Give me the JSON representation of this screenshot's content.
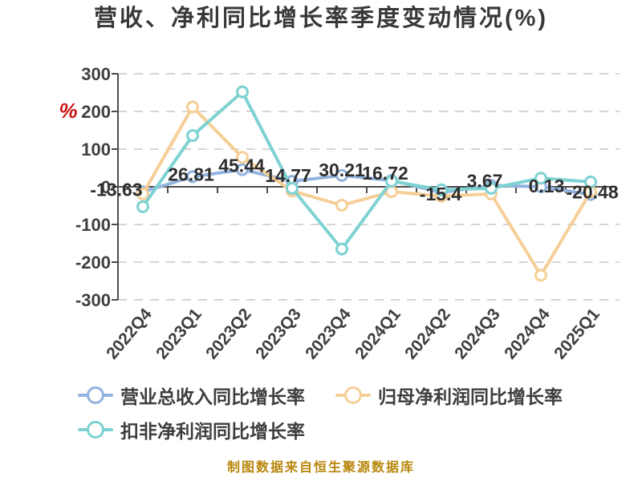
{
  "chart_data": {
    "type": "line",
    "title": "营收、净利同比增长率季度变动情况(%)",
    "y_axis_unit": "%",
    "categories": [
      "2022Q4",
      "2023Q1",
      "2023Q2",
      "2023Q3",
      "2023Q4",
      "2024Q1",
      "2024Q2",
      "2024Q3",
      "2024Q4",
      "2025Q1"
    ],
    "y_tick_labels": [
      "300",
      "200",
      "100",
      "0",
      "-100",
      "-200",
      "-300"
    ],
    "ylim": [
      -300,
      300
    ],
    "grid": "horizontal-dashed",
    "legend_position": "bottom-left",
    "series": [
      {
        "name": "营业总收入同比增长率",
        "color": "#92b3de",
        "values": [
          -13.63,
          26.81,
          45.44,
          14.77,
          30.21,
          16.72,
          -15.4,
          3.67,
          0.13,
          -20.48
        ],
        "point_labels": [
          "-13.63",
          "26.81",
          "45.44",
          "14.77",
          "30.21",
          "16.72",
          "-15.4",
          "3.67",
          "0.13",
          "-20.48"
        ],
        "labels_shown": true
      },
      {
        "name": "归母净利润同比增长率",
        "color": "#f6cf97",
        "values": [
          -19,
          212,
          78,
          -11,
          -49,
          -13,
          -25,
          -19,
          -235,
          -13
        ],
        "labels_shown": false
      },
      {
        "name": "扣非净利润同比增长率",
        "color": "#7ed2d2",
        "values": [
          -53,
          136,
          252,
          -4,
          -165,
          15,
          -8,
          -4,
          23,
          13
        ],
        "labels_shown": false
      }
    ],
    "colors": {
      "axis": "#4c4c4c",
      "grid": "#d5d5d5",
      "tick_label": "#3f3f3f",
      "data_label": "#2e2e2e",
      "unit": "#cc1111",
      "title": "#383838",
      "footer": "#b8860b",
      "legend_text": "#3d3d3d",
      "marker_fill": "#ffffff"
    },
    "footer": "制图数据来自恒生聚源数据库"
  }
}
